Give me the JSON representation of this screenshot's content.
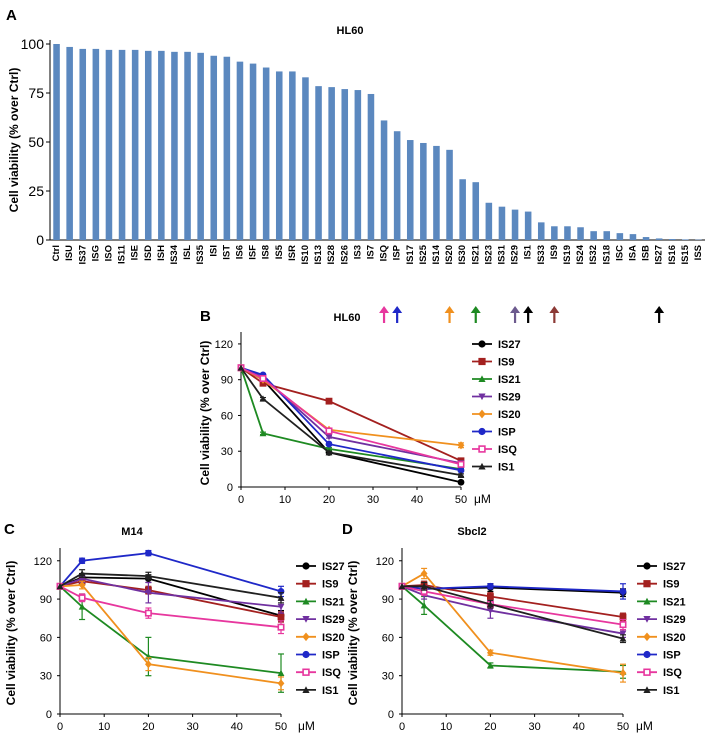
{
  "colors": {
    "bar": "#5b88bf",
    "axis": "#000000",
    "gridline": "#d9d9d9",
    "IS27": "#000000",
    "IS9": "#a3201f",
    "IS21": "#1e8a22",
    "IS29": "#7030a0",
    "IS20": "#f0901e",
    "ISP": "#1f28c8",
    "ISQ": "#e7379e",
    "IS1": "#202020"
  },
  "legend_markers": {
    "IS27": "circle",
    "IS9": "square",
    "IS21": "triangle",
    "IS29": "triangle-down",
    "IS20": "diamond",
    "ISP": "circle",
    "ISQ": "square-open",
    "IS1": "triangle"
  },
  "panel_labels": [
    "A",
    "B",
    "C",
    "D"
  ],
  "chart_data": [
    {
      "id": "A",
      "type": "bar",
      "title": "HL60",
      "xlabel": "",
      "ylabel": "Cell viability  (% over Ctrl)",
      "ylim": [
        0,
        100
      ],
      "yticks": [
        0,
        25,
        50,
        75,
        100
      ],
      "categories": [
        "Ctrl",
        "ISU",
        "IS37",
        "ISG",
        "ISO",
        "IS11",
        "ISE",
        "ISD",
        "ISH",
        "IS34",
        "ISL",
        "IS35",
        "ISI",
        "IST",
        "IS6",
        "ISF",
        "IS8",
        "IS5",
        "ISR",
        "IS10",
        "IS13",
        "IS28",
        "IS26",
        "IS3",
        "IS7",
        "ISQ",
        "ISP",
        "IS17",
        "IS25",
        "IS14",
        "IS20",
        "IS30",
        "IS21",
        "IS23",
        "IS31",
        "IS29",
        "IS1",
        "IS33",
        "IS9",
        "IS19",
        "IS24",
        "IS32",
        "IS18",
        "ISC",
        "ISA",
        "ISB",
        "IS27",
        "IS16",
        "IS15",
        "ISS"
      ],
      "values": [
        100,
        98.5,
        97.5,
        97.5,
        97,
        97,
        97,
        96.5,
        96.5,
        96,
        96,
        95.5,
        94,
        93.5,
        91,
        90,
        88,
        86,
        86,
        83,
        78.5,
        78,
        77,
        76.5,
        74.5,
        61,
        55.5,
        51,
        49.5,
        48,
        46,
        31,
        29.5,
        19,
        17,
        15.5,
        14.5,
        9,
        7,
        7,
        6.5,
        4.5,
        4.5,
        3.5,
        3,
        1.5,
        0.8,
        0.5,
        0.3,
        0.2
      ],
      "arrows": [
        {
          "category": "ISQ",
          "color": "#e7379e"
        },
        {
          "category": "ISP",
          "color": "#1f28c8"
        },
        {
          "category": "IS20",
          "color": "#f0901e"
        },
        {
          "category": "IS21",
          "color": "#1e8a22"
        },
        {
          "category": "IS29",
          "color": "#6c5a8e"
        },
        {
          "category": "IS1",
          "color": "#000000"
        },
        {
          "category": "IS9",
          "color": "#8c3a36"
        },
        {
          "category": "IS27",
          "color": "#000000"
        }
      ]
    },
    {
      "id": "B",
      "type": "line",
      "title": "HL60",
      "ylabel": "Cell viability  (% over Ctrl)",
      "unit_label": "μM",
      "xlim": [
        0,
        50
      ],
      "ylim": [
        0,
        130
      ],
      "xticks": [
        0,
        10,
        20,
        30,
        40,
        50
      ],
      "yticks": [
        0,
        30,
        60,
        90,
        120
      ],
      "x": [
        0,
        5,
        20,
        50
      ],
      "series": [
        {
          "name": "IS27",
          "values": [
            100,
            90,
            29,
            4
          ],
          "errors": [
            0,
            1,
            1,
            1
          ]
        },
        {
          "name": "IS9",
          "values": [
            100,
            87,
            72,
            22
          ],
          "errors": [
            0,
            1,
            1,
            1
          ]
        },
        {
          "name": "IS21",
          "values": [
            100,
            45,
            32,
            15
          ],
          "errors": [
            0,
            1,
            1,
            1
          ]
        },
        {
          "name": "IS29",
          "values": [
            100,
            92,
            42,
            20
          ],
          "errors": [
            0,
            1,
            1,
            1
          ]
        },
        {
          "name": "IS20",
          "values": [
            100,
            90,
            48,
            35
          ],
          "errors": [
            0,
            1,
            1,
            2
          ]
        },
        {
          "name": "ISP",
          "values": [
            100,
            94,
            36,
            14
          ],
          "errors": [
            0,
            1,
            1,
            1
          ]
        },
        {
          "name": "ISQ",
          "values": [
            100,
            91,
            47,
            19
          ],
          "errors": [
            0,
            1,
            1,
            1
          ]
        },
        {
          "name": "IS1",
          "values": [
            100,
            74,
            29,
            10
          ],
          "errors": [
            0,
            1,
            1,
            1
          ]
        }
      ]
    },
    {
      "id": "C",
      "type": "line",
      "title": "M14",
      "ylabel": "Cell viability  (% over Ctrl)",
      "unit_label": "μM",
      "xlim": [
        0,
        50
      ],
      "ylim": [
        0,
        130
      ],
      "xticks": [
        0,
        10,
        20,
        30,
        40,
        50
      ],
      "yticks": [
        0,
        30,
        60,
        90,
        120
      ],
      "x": [
        0,
        5,
        20,
        50
      ],
      "series": [
        {
          "name": "IS27",
          "values": [
            100,
            107,
            106,
            77
          ],
          "errors": [
            0,
            3,
            3,
            4
          ]
        },
        {
          "name": "IS9",
          "values": [
            100,
            104,
            97,
            76
          ],
          "errors": [
            0,
            3,
            3,
            4
          ]
        },
        {
          "name": "IS21",
          "values": [
            100,
            84,
            45,
            32
          ],
          "errors": [
            0,
            10,
            15,
            15
          ]
        },
        {
          "name": "IS29",
          "values": [
            100,
            106,
            95,
            84
          ],
          "errors": [
            0,
            3,
            8,
            5
          ]
        },
        {
          "name": "IS20",
          "values": [
            100,
            101,
            39,
            24
          ],
          "errors": [
            0,
            3,
            5,
            5
          ]
        },
        {
          "name": "ISP",
          "values": [
            100,
            120,
            126,
            96
          ],
          "errors": [
            0,
            2,
            2,
            4
          ]
        },
        {
          "name": "ISQ",
          "values": [
            100,
            91,
            79,
            68
          ],
          "errors": [
            0,
            3,
            4,
            5
          ]
        },
        {
          "name": "IS1",
          "values": [
            100,
            110,
            108,
            91
          ],
          "errors": [
            0,
            3,
            3,
            4
          ]
        }
      ]
    },
    {
      "id": "D",
      "type": "line",
      "title": "Sbcl2",
      "ylabel": "Cell viability  (% over Ctrl)",
      "unit_label": "μM",
      "xlim": [
        0,
        50
      ],
      "ylim": [
        0,
        130
      ],
      "xticks": [
        0,
        10,
        20,
        30,
        40,
        50
      ],
      "yticks": [
        0,
        30,
        60,
        90,
        120
      ],
      "x": [
        0,
        5,
        20,
        50
      ],
      "series": [
        {
          "name": "IS27",
          "values": [
            100,
            98,
            99,
            95
          ],
          "errors": [
            0,
            3,
            3,
            3
          ]
        },
        {
          "name": "IS9",
          "values": [
            100,
            101,
            92,
            76
          ],
          "errors": [
            0,
            3,
            3,
            3
          ]
        },
        {
          "name": "IS21",
          "values": [
            100,
            85,
            38,
            33
          ],
          "errors": [
            0,
            7,
            2,
            5
          ]
        },
        {
          "name": "IS29",
          "values": [
            100,
            93,
            81,
            63
          ],
          "errors": [
            0,
            3,
            6,
            3
          ]
        },
        {
          "name": "IS20",
          "values": [
            100,
            110,
            48,
            32
          ],
          "errors": [
            0,
            4,
            2,
            7
          ]
        },
        {
          "name": "ISP",
          "values": [
            100,
            98,
            100,
            96
          ],
          "errors": [
            0,
            2,
            2,
            6
          ]
        },
        {
          "name": "ISQ",
          "values": [
            100,
            96,
            86,
            70
          ],
          "errors": [
            0,
            3,
            3,
            4
          ]
        },
        {
          "name": "IS1",
          "values": [
            100,
            100,
            86,
            59
          ],
          "errors": [
            0,
            3,
            3,
            3
          ]
        }
      ]
    }
  ]
}
